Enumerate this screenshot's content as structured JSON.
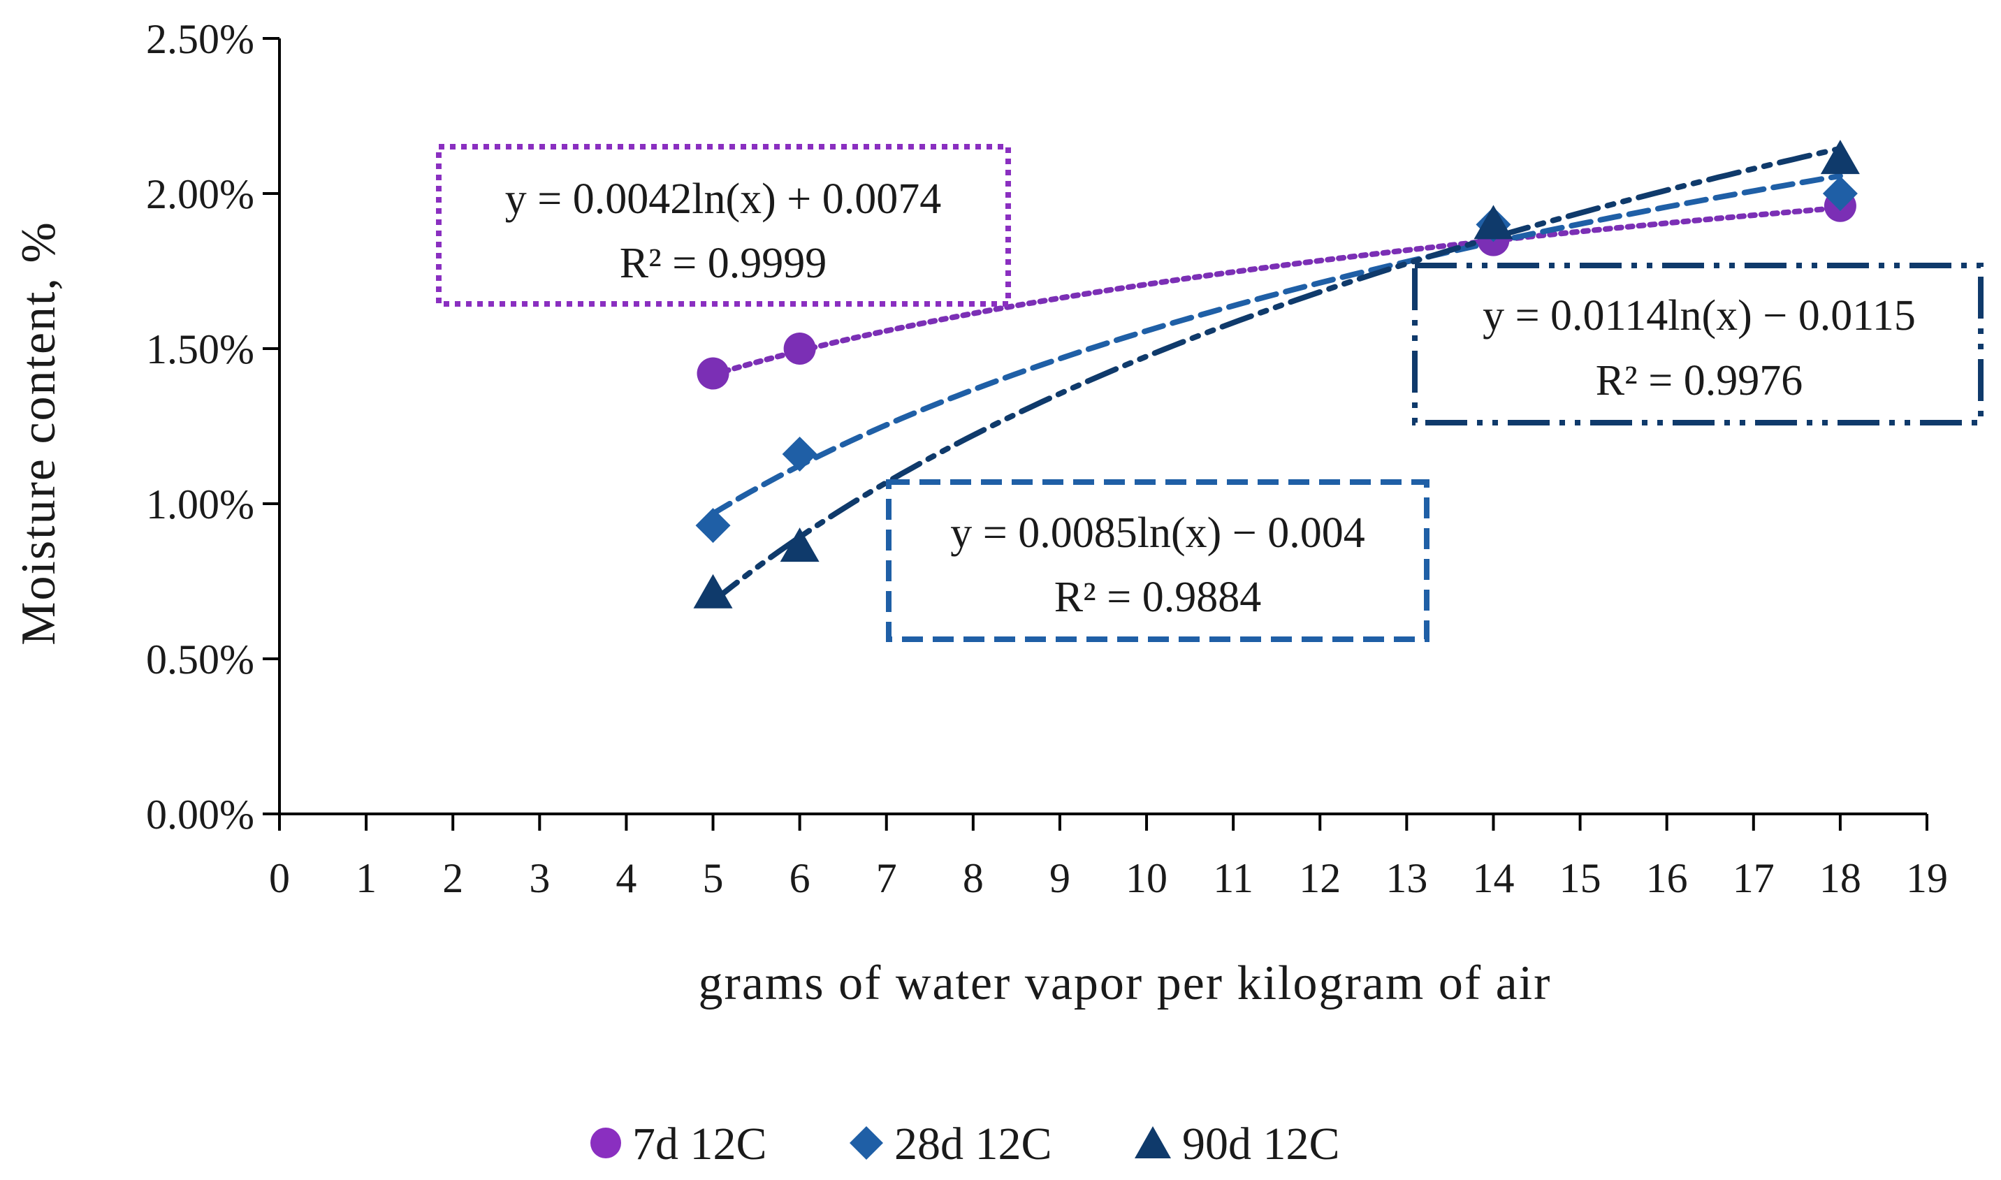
{
  "chart_data": {
    "type": "scatter",
    "xlabel": "grams of water vapor per kilogram of air",
    "ylabel": "Moisture content, %",
    "xlim": [
      0,
      19
    ],
    "ylim": [
      0,
      0.025
    ],
    "x_ticks": [
      "0",
      "1",
      "2",
      "3",
      "4",
      "5",
      "6",
      "7",
      "8",
      "9",
      "10",
      "11",
      "12",
      "13",
      "14",
      "15",
      "16",
      "17",
      "18",
      "19"
    ],
    "y_ticks": [
      "0.00%",
      "0.50%",
      "1.00%",
      "1.50%",
      "2.00%",
      "2.50%"
    ],
    "grid": false,
    "legend_position": "bottom",
    "series": [
      {
        "name": "7d 12C",
        "marker": "circle",
        "color": "#7b2fb5",
        "x": [
          5,
          6,
          14,
          18
        ],
        "y": [
          0.0142,
          0.015,
          0.0185,
          0.0196
        ],
        "trendline": {
          "type": "logarithmic",
          "a": 0.0042,
          "b": 0.0074,
          "line_style": "dotted",
          "equation": "y = 0.0042ln(x) + 0.0074",
          "r2": "R² = 0.9999"
        }
      },
      {
        "name": "28d 12C",
        "marker": "diamond",
        "color": "#1f5fa6",
        "x": [
          5,
          6,
          14,
          18
        ],
        "y": [
          0.0093,
          0.0116,
          0.019,
          0.02
        ],
        "trendline": {
          "type": "logarithmic",
          "a": 0.0085,
          "b": -0.004,
          "line_style": "dashed",
          "equation": "y = 0.0085ln(x) − 0.004",
          "r2": "R² = 0.9884"
        }
      },
      {
        "name": "90d 12C",
        "marker": "triangle",
        "color": "#0f3a6b",
        "x": [
          5,
          6,
          14,
          18
        ],
        "y": [
          0.0071,
          0.0086,
          0.019,
          0.0211
        ],
        "trendline": {
          "type": "logarithmic",
          "a": 0.0114,
          "b": -0.0115,
          "line_style": "dash-dot-dot",
          "equation": "y = 0.0114ln(x) − 0.0115",
          "r2": "R² = 0.9976"
        }
      }
    ]
  }
}
